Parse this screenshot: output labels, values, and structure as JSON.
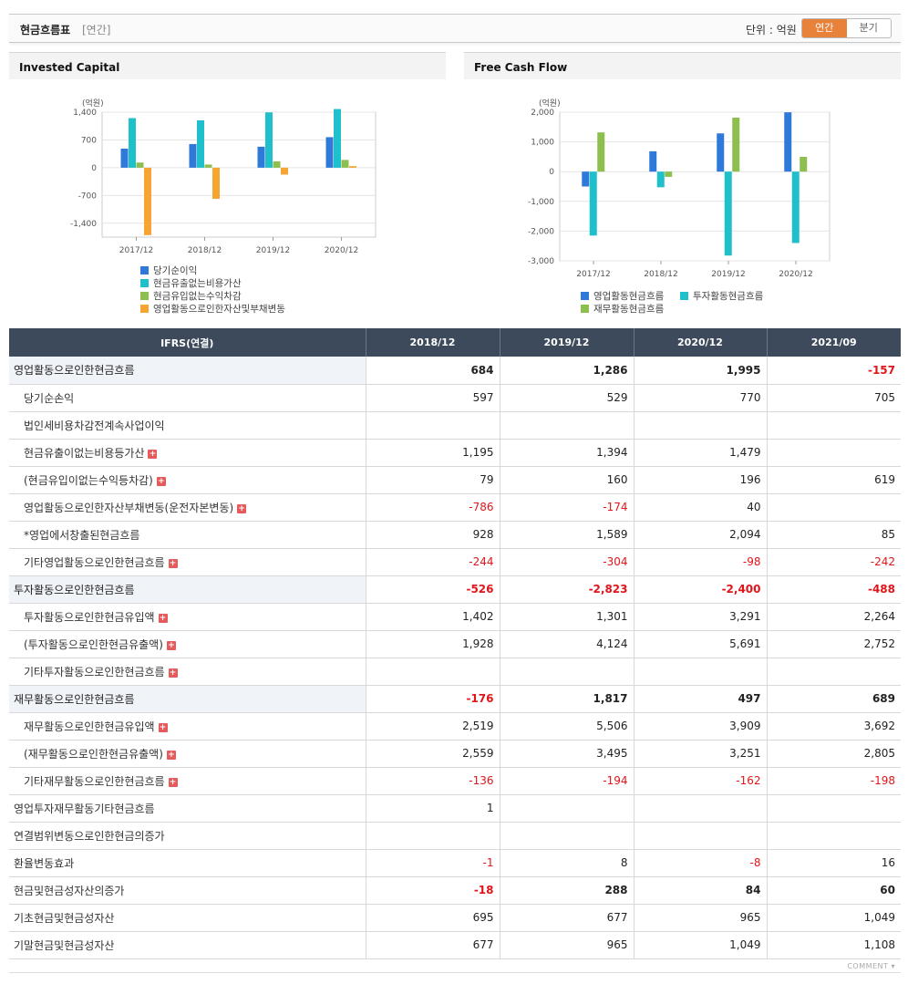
{
  "header": {
    "title": "현금흐름표",
    "subtitle": "[연간]",
    "unit_label": "단위 : 억원",
    "tabs": [
      "연간",
      "분기"
    ],
    "active_tab": 0
  },
  "colors": {
    "blue": "#2f7ad9",
    "teal": "#1fbfcc",
    "green": "#8cbf4e",
    "orange": "#f6a533",
    "neg": "#e0151a",
    "header_bg": "#3c4a5c",
    "active_tab": "#e8813a"
  },
  "chart_data": [
    {
      "type": "bar",
      "title": "Invested Capital",
      "ylabel": "(억원)",
      "categories": [
        "2017/12",
        "2018/12",
        "2019/12",
        "2020/12"
      ],
      "ylim": [
        -1750,
        1400
      ],
      "yticks": [
        1400,
        700,
        0,
        -700,
        -1400
      ],
      "ytick_labels": [
        "1,400",
        "700",
        "0",
        "-700",
        "-1,400"
      ],
      "legend_position": "bottom",
      "series": [
        {
          "name": "당기순이익",
          "color": "#2f7ad9",
          "values": [
            480,
            597,
            529,
            770
          ]
        },
        {
          "name": "현금유출없는비용가산",
          "color": "#1fbfcc",
          "values": [
            1250,
            1195,
            1394,
            1479
          ]
        },
        {
          "name": "현금유입없는수익차감",
          "color": "#8cbf4e",
          "values": [
            130,
            79,
            160,
            196
          ]
        },
        {
          "name": "영업활동으로인한자산및부채변동",
          "color": "#f6a533",
          "values": [
            -1700,
            -786,
            -174,
            40
          ]
        }
      ]
    },
    {
      "type": "bar",
      "title": "Free Cash Flow",
      "ylabel": "(억원)",
      "categories": [
        "2017/12",
        "2018/12",
        "2019/12",
        "2020/12"
      ],
      "ylim": [
        -3000,
        2000
      ],
      "yticks": [
        2000,
        1000,
        0,
        -1000,
        -2000,
        -3000
      ],
      "ytick_labels": [
        "2,000",
        "1,000",
        "0",
        "-1,000",
        "-2,000",
        "-3,000"
      ],
      "legend_position": "bottom",
      "series": [
        {
          "name": "영업활동현금흐름",
          "color": "#2f7ad9",
          "values": [
            -500,
            684,
            1286,
            1995
          ]
        },
        {
          "name": "투자활동현금흐름",
          "color": "#1fbfcc",
          "values": [
            -2150,
            -526,
            -2823,
            -2400
          ]
        },
        {
          "name": "재무활동현금흐름",
          "color": "#8cbf4e",
          "values": [
            1320,
            -176,
            1817,
            497
          ]
        }
      ]
    }
  ],
  "table": {
    "header": [
      "IFRS(연결)",
      "2018/12",
      "2019/12",
      "2020/12",
      "2021/09"
    ],
    "rows": [
      {
        "label": "영업활동으로인한현금흐름",
        "level": "major",
        "plus": false,
        "values": [
          "684",
          "1,286",
          "1,995",
          "-157"
        ]
      },
      {
        "label": "당기순손익",
        "level": "sub",
        "plus": false,
        "values": [
          "597",
          "529",
          "770",
          "705"
        ]
      },
      {
        "label": "법인세비용차감전계속사업이익",
        "level": "sub",
        "plus": false,
        "values": [
          "",
          "",
          "",
          ""
        ]
      },
      {
        "label": "현금유출이없는비용등가산",
        "level": "sub",
        "plus": true,
        "values": [
          "1,195",
          "1,394",
          "1,479",
          ""
        ]
      },
      {
        "label": "(현금유입이없는수익등차감)",
        "level": "sub",
        "plus": true,
        "values": [
          "79",
          "160",
          "196",
          "619"
        ]
      },
      {
        "label": "영업활동으로인한자산부채변동(운전자본변동)",
        "level": "sub",
        "plus": true,
        "values": [
          "-786",
          "-174",
          "40",
          ""
        ]
      },
      {
        "label": "*영업에서창출된현금흐름",
        "level": "sub",
        "plus": false,
        "values": [
          "928",
          "1,589",
          "2,094",
          "85"
        ]
      },
      {
        "label": "기타영업활동으로인한현금흐름",
        "level": "sub",
        "plus": true,
        "values": [
          "-244",
          "-304",
          "-98",
          "-242"
        ]
      },
      {
        "label": "투자활동으로인한현금흐름",
        "level": "major",
        "plus": false,
        "values": [
          "-526",
          "-2,823",
          "-2,400",
          "-488"
        ]
      },
      {
        "label": "투자활동으로인한현금유입액",
        "level": "sub",
        "plus": true,
        "values": [
          "1,402",
          "1,301",
          "3,291",
          "2,264"
        ]
      },
      {
        "label": "(투자활동으로인한현금유출액)",
        "level": "sub",
        "plus": true,
        "values": [
          "1,928",
          "4,124",
          "5,691",
          "2,752"
        ]
      },
      {
        "label": "기타투자활동으로인한현금흐름",
        "level": "sub",
        "plus": true,
        "values": [
          "",
          "",
          "",
          ""
        ]
      },
      {
        "label": "재무활동으로인한현금흐름",
        "level": "major",
        "plus": false,
        "values": [
          "-176",
          "1,817",
          "497",
          "689"
        ]
      },
      {
        "label": "재무활동으로인한현금유입액",
        "level": "sub",
        "plus": true,
        "values": [
          "2,519",
          "5,506",
          "3,909",
          "3,692"
        ]
      },
      {
        "label": "(재무활동으로인한현금유출액)",
        "level": "sub",
        "plus": true,
        "values": [
          "2,559",
          "3,495",
          "3,251",
          "2,805"
        ]
      },
      {
        "label": "기타재무활동으로인한현금흐름",
        "level": "sub",
        "plus": true,
        "values": [
          "-136",
          "-194",
          "-162",
          "-198"
        ]
      },
      {
        "label": "영업투자재무활동기타현금흐름",
        "level": "top",
        "plus": false,
        "values": [
          "1",
          "",
          "",
          ""
        ]
      },
      {
        "label": "연결범위변동으로인한현금의증가",
        "level": "top",
        "plus": false,
        "values": [
          "",
          "",
          "",
          ""
        ]
      },
      {
        "label": "환율변동효과",
        "level": "top",
        "plus": false,
        "values": [
          "-1",
          "8",
          "-8",
          "16"
        ]
      },
      {
        "label": "현금및현금성자산의증가",
        "level": "top-bold",
        "plus": false,
        "values": [
          "-18",
          "288",
          "84",
          "60"
        ]
      },
      {
        "label": "기초현금및현금성자산",
        "level": "top",
        "plus": false,
        "values": [
          "695",
          "677",
          "965",
          "1,049"
        ]
      },
      {
        "label": "기말현금및현금성자산",
        "level": "top",
        "plus": false,
        "values": [
          "677",
          "965",
          "1,049",
          "1,108"
        ]
      }
    ]
  },
  "footer": {
    "comment": "COMMENT"
  }
}
